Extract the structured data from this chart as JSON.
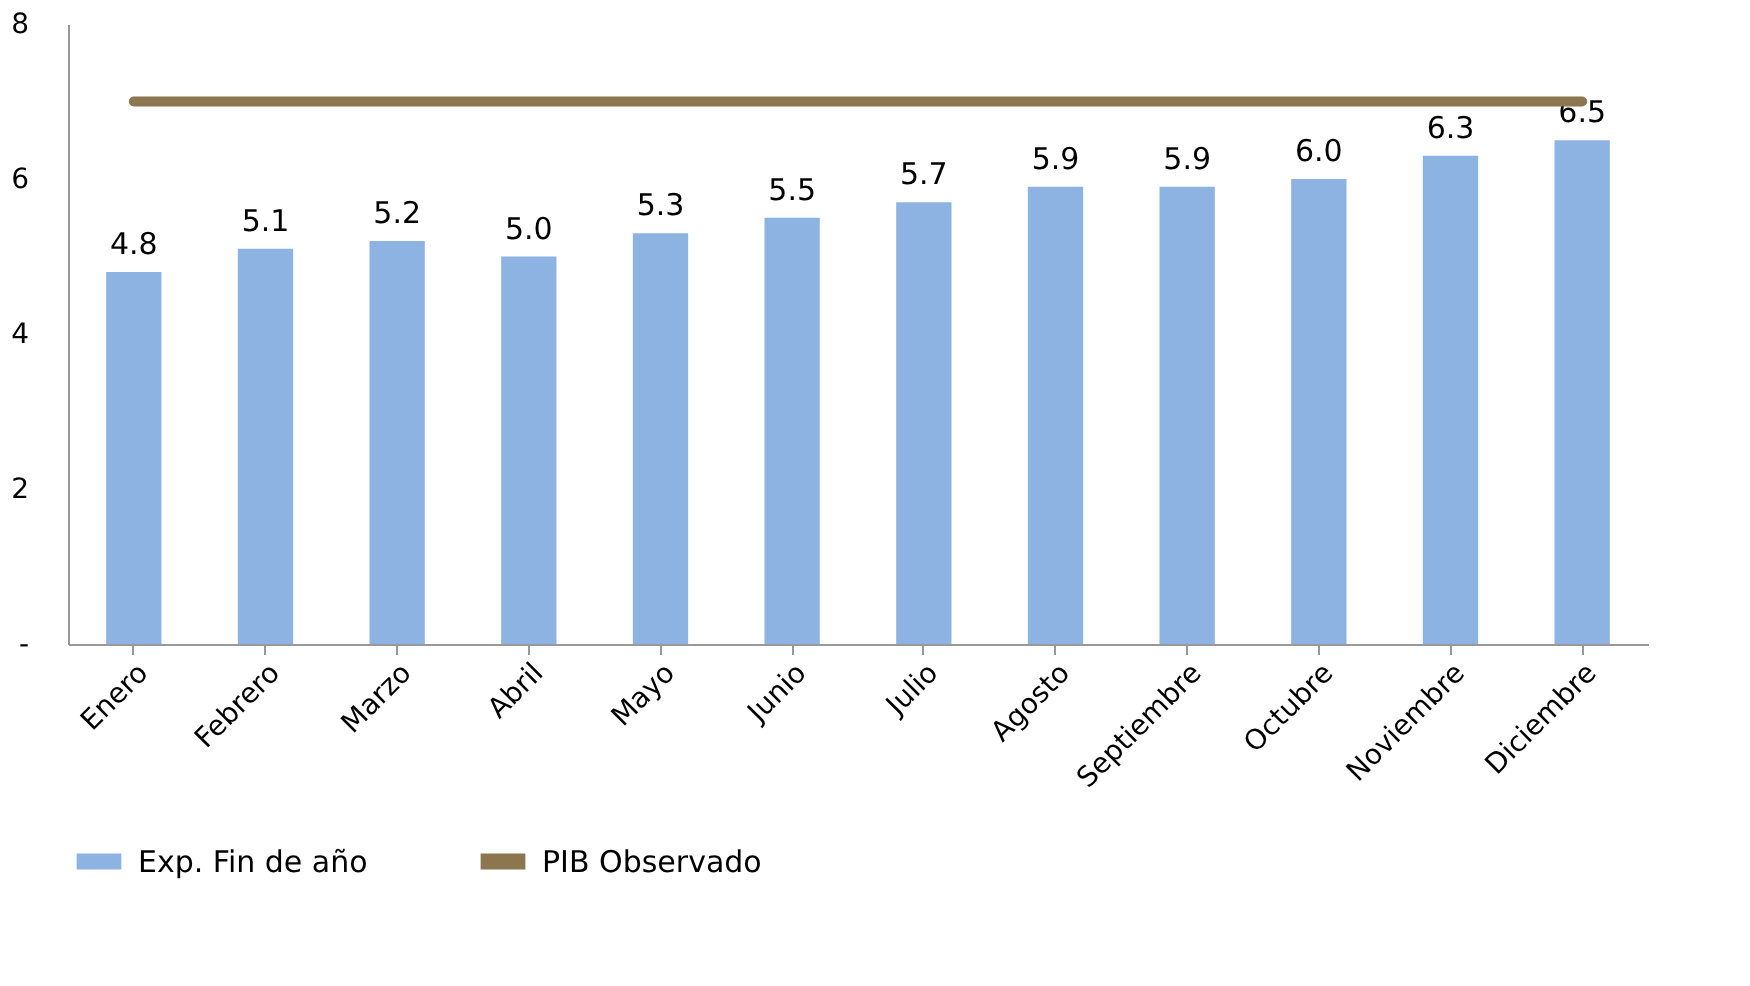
{
  "chart_data": {
    "type": "bar",
    "categories": [
      "Enero",
      "Febrero",
      "Marzo",
      "Abril",
      "Mayo",
      "Junio",
      "Julio",
      "Agosto",
      "Septiembre",
      "Octubre",
      "Noviembre",
      "Diciembre"
    ],
    "series": [
      {
        "name": "Exp. Fin de año",
        "color": "#8db3e2",
        "values": [
          4.8,
          5.1,
          5.2,
          5.0,
          5.3,
          5.5,
          5.7,
          5.9,
          5.9,
          6.0,
          6.3,
          6.5
        ],
        "value_labels": [
          "4.8",
          "5.1",
          "5.2",
          "5.0",
          "5.3",
          "5.5",
          "5.7",
          "5.9",
          "5.9",
          "6.0",
          "6.3",
          "6.5"
        ]
      },
      {
        "name": "PIB Observado",
        "type": "line",
        "color": "#8b7650",
        "values": [
          7.0,
          7.0,
          7.0,
          7.0,
          7.0,
          7.0,
          7.0,
          7.0,
          7.0,
          7.0,
          7.0,
          7.0
        ]
      }
    ],
    "ylim": [
      0,
      8
    ],
    "yticks": [
      {
        "value": 0,
        "label": "-"
      },
      2,
      4,
      6,
      8
    ],
    "grid": false,
    "legend": "bottom"
  }
}
